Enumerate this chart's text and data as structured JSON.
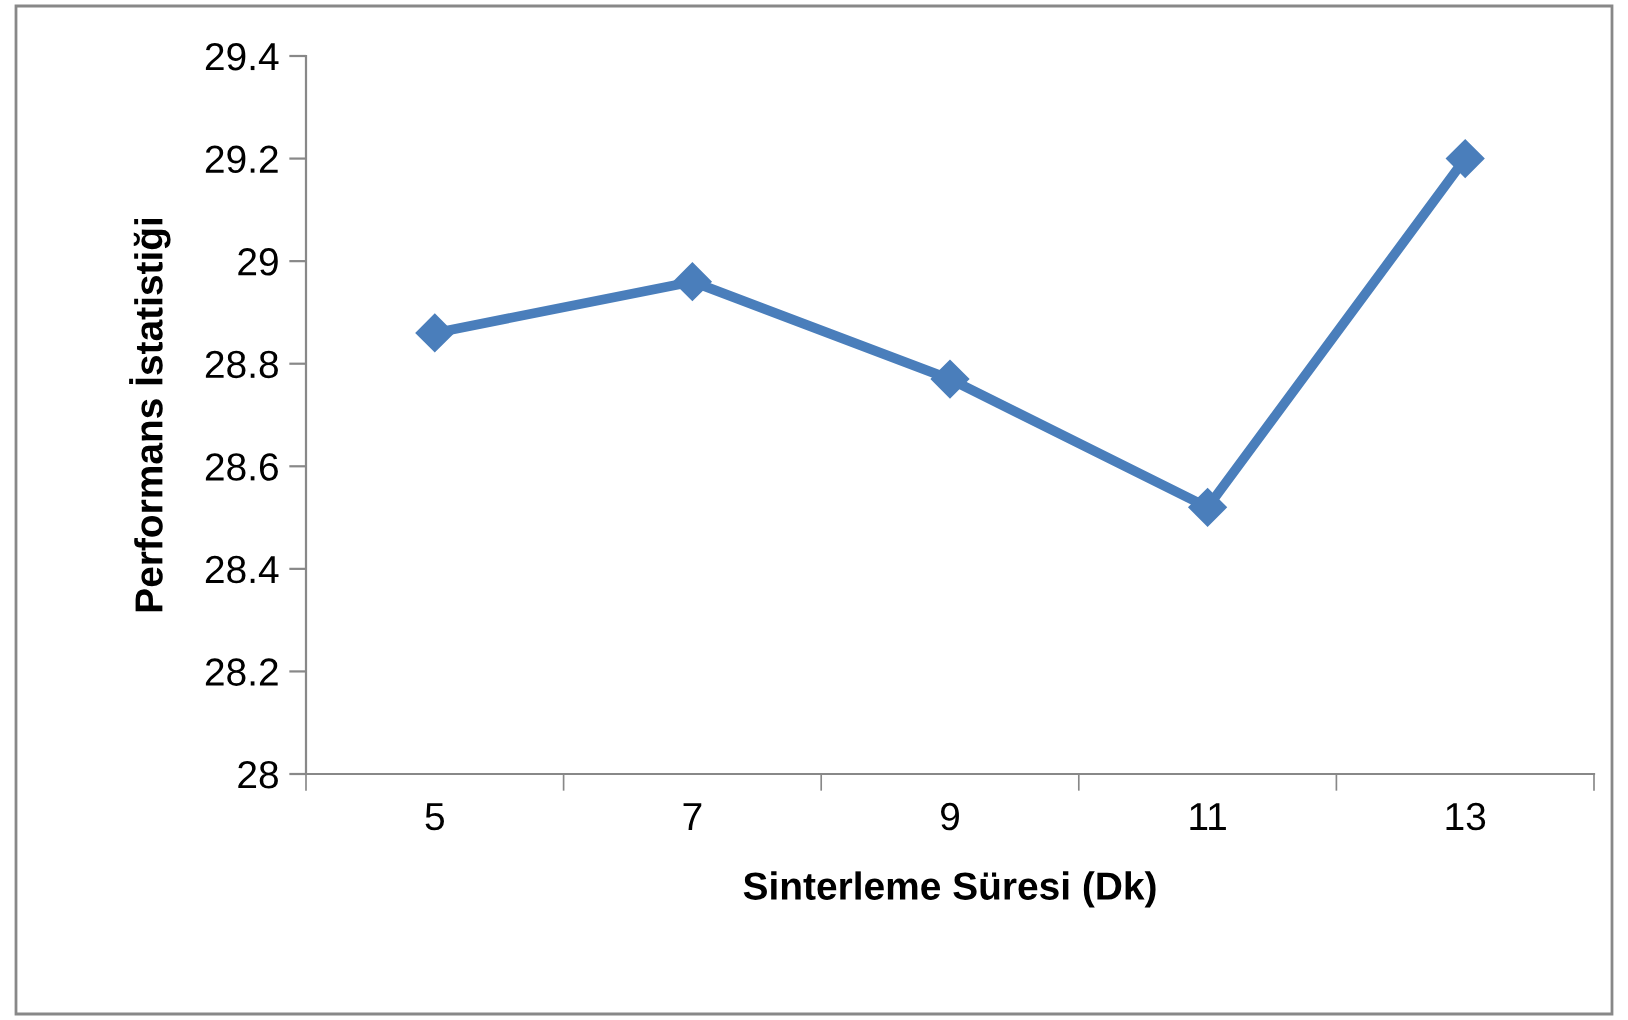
{
  "chart_data": {
    "type": "line",
    "xlabel": "Sinterleme Süresi (Dk)",
    "ylabel": "Performans İstatistiği",
    "categories": [
      "5",
      "7",
      "9",
      "11",
      "13"
    ],
    "series": [
      {
        "color": "#4a7ebb",
        "values": [
          28.86,
          28.96,
          28.77,
          28.52,
          29.2
        ]
      }
    ],
    "ylim": [
      28,
      29.4
    ],
    "yticks": [
      28,
      28.2,
      28.4,
      28.6,
      28.8,
      29,
      29.2,
      29.4
    ],
    "marker": "diamond",
    "line_style": "solid",
    "grid": false,
    "legend": false
  }
}
